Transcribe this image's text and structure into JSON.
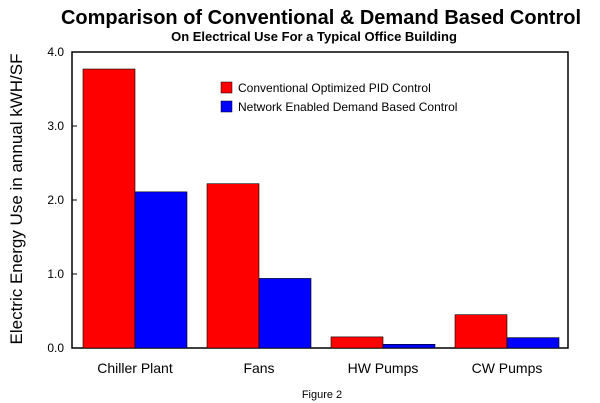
{
  "figure_caption": "Figure 2",
  "chart_data": {
    "type": "bar",
    "title": "Comparison of Conventional & Demand Based Control",
    "subtitle": "On Electrical Use For a Typical Office Building",
    "xlabel": "",
    "ylabel": "Electric Energy Use in annual kWH/SF",
    "ylim": [
      0,
      4.0
    ],
    "yticks": [
      "0.0",
      "1.0",
      "2.0",
      "3.0",
      "4.0"
    ],
    "categories": [
      "Chiller Plant",
      "Fans",
      "HW Pumps",
      "CW Pumps"
    ],
    "series": [
      {
        "name": "Conventional Optimized PID Control",
        "color": "#ff0000",
        "values": [
          3.77,
          2.22,
          0.15,
          0.45
        ]
      },
      {
        "name": "Network Enabled Demand Based Control",
        "color": "#0000ff",
        "values": [
          2.11,
          0.94,
          0.05,
          0.14
        ]
      }
    ],
    "legend_position": "top-right",
    "grid": false
  }
}
